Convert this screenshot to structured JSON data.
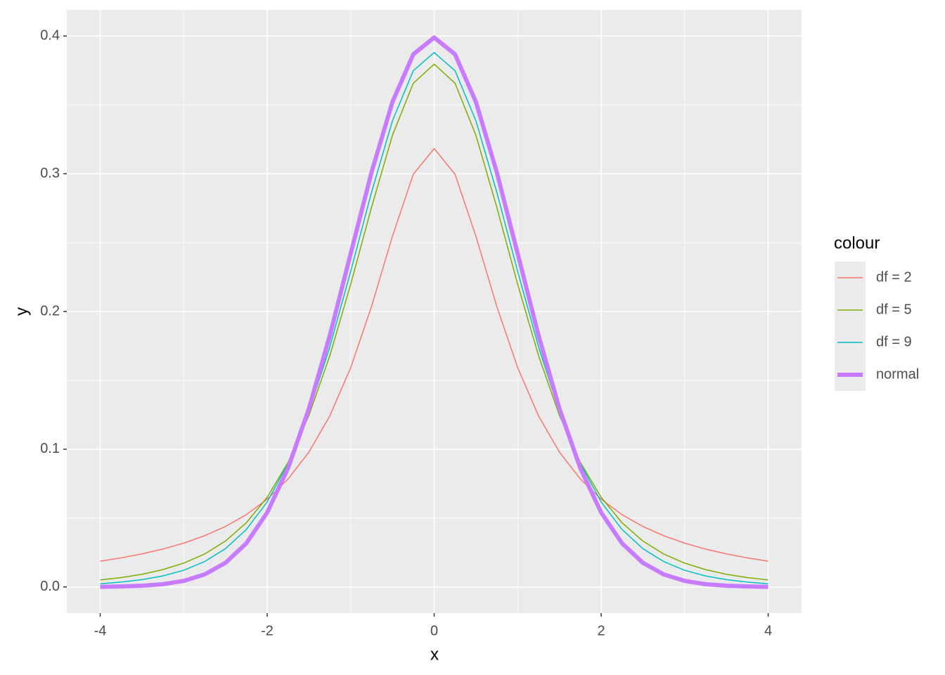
{
  "chart_data": {
    "type": "line",
    "x_label": "x",
    "y_label": "y",
    "legend_title": "colour",
    "x": [
      -4,
      -3.75,
      -3.5,
      -3.25,
      -3,
      -2.75,
      -2.5,
      -2.25,
      -2,
      -1.75,
      -1.5,
      -1.25,
      -1,
      -0.75,
      -0.5,
      -0.25,
      0,
      0.25,
      0.5,
      0.75,
      1,
      1.25,
      1.5,
      1.75,
      2,
      2.25,
      2.5,
      2.75,
      3,
      3.25,
      3.5,
      3.75,
      4
    ],
    "series": [
      {
        "name": "df = 2",
        "color": "#F8766D",
        "width": 1.5,
        "values": [
          0.0187,
          0.0211,
          0.024,
          0.0275,
          0.0318,
          0.0372,
          0.0439,
          0.0525,
          0.0637,
          0.0784,
          0.0979,
          0.1242,
          0.1592,
          0.2037,
          0.2546,
          0.2996,
          0.3183,
          0.2996,
          0.2546,
          0.2037,
          0.1592,
          0.1242,
          0.0979,
          0.0784,
          0.0637,
          0.0525,
          0.0439,
          0.0372,
          0.0318,
          0.0275,
          0.024,
          0.0211,
          0.0187
        ]
      },
      {
        "name": "df = 5",
        "color": "#7CAE00",
        "width": 1.5,
        "values": [
          0.0051,
          0.0068,
          0.0092,
          0.0126,
          0.0173,
          0.0239,
          0.0333,
          0.0466,
          0.0651,
          0.0905,
          0.1245,
          0.1679,
          0.2197,
          0.2757,
          0.3279,
          0.3657,
          0.3796,
          0.3657,
          0.3279,
          0.2757,
          0.2197,
          0.1679,
          0.1245,
          0.0905,
          0.0651,
          0.0466,
          0.0333,
          0.0239,
          0.0173,
          0.0126,
          0.0092,
          0.0068,
          0.0051
        ]
      },
      {
        "name": "df = 9",
        "color": "#00BFC4",
        "width": 1.5,
        "values": [
          0.0023,
          0.0035,
          0.0053,
          0.008,
          0.0121,
          0.0184,
          0.0278,
          0.0417,
          0.0617,
          0.0897,
          0.1272,
          0.1743,
          0.2291,
          0.2866,
          0.3384,
          0.3748,
          0.388,
          0.3748,
          0.3384,
          0.2866,
          0.2291,
          0.1743,
          0.1272,
          0.0897,
          0.0617,
          0.0417,
          0.0278,
          0.0184,
          0.0121,
          0.008,
          0.0053,
          0.0035,
          0.0023
        ]
      },
      {
        "name": "normal",
        "color": "#C77CFF",
        "width": 6,
        "values": [
          0.0001,
          0.0004,
          0.0009,
          0.002,
          0.0044,
          0.0091,
          0.0175,
          0.0317,
          0.054,
          0.0863,
          0.1295,
          0.1826,
          0.242,
          0.3011,
          0.3521,
          0.3867,
          0.3989,
          0.3867,
          0.3521,
          0.3011,
          0.242,
          0.1826,
          0.1295,
          0.0863,
          0.054,
          0.0317,
          0.0175,
          0.0091,
          0.0044,
          0.002,
          0.0009,
          0.0004,
          0.0001
        ]
      }
    ],
    "xlim": [
      -4.4,
      4.4
    ],
    "xticks": [
      -4,
      -2,
      0,
      2,
      4
    ],
    "ylim": [
      -0.019,
      0.419
    ],
    "yticks": [
      {
        "value": 0,
        "label": "0.0"
      },
      {
        "value": 0.1,
        "label": "0.1"
      },
      {
        "value": 0.2,
        "label": "0.2"
      },
      {
        "value": 0.3,
        "label": "0.3"
      },
      {
        "value": 0.4,
        "label": "0.4"
      }
    ],
    "grid": true,
    "legend": "right"
  }
}
